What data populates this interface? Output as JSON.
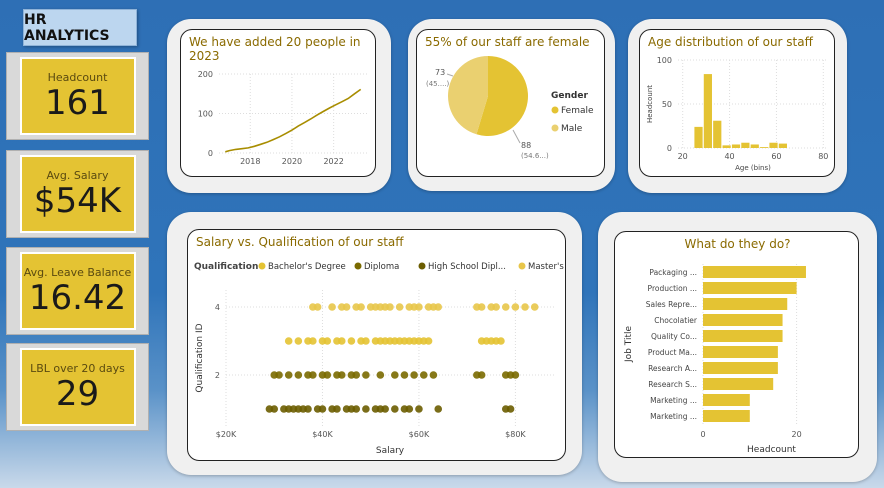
{
  "header": {
    "title": "HR ANALYTICS"
  },
  "kpis": [
    {
      "label": "Headcount",
      "value": "161"
    },
    {
      "label": "Avg. Salary",
      "value": "$54K"
    },
    {
      "label": "Avg. Leave Balance",
      "value": "16.42"
    },
    {
      "label": "LBL over 20 days",
      "value": "29"
    }
  ],
  "colors": {
    "gold": "#e4c333",
    "olive": "#7a6a00",
    "darkgold": "#a88d00",
    "title": "#8a6a00"
  },
  "chart_data": [
    {
      "type": "line",
      "title": "We have added 20 people in 2023",
      "xticks": [
        "2018",
        "2020",
        "2022"
      ],
      "yticks": [
        "0",
        "100",
        "200"
      ],
      "ylim": [
        0,
        200
      ],
      "xlim": [
        2016.5,
        2023.6
      ],
      "x": [
        2016.8,
        2017.0,
        2017.3,
        2017.6,
        2017.9,
        2018.2,
        2018.5,
        2018.8,
        2019.1,
        2019.4,
        2019.7,
        2020.0,
        2020.3,
        2020.6,
        2020.9,
        2021.2,
        2021.5,
        2021.8,
        2022.1,
        2022.4,
        2022.7,
        2023.0,
        2023.3
      ],
      "y": [
        3,
        6,
        9,
        11,
        13,
        17,
        22,
        27,
        34,
        41,
        49,
        58,
        68,
        77,
        86,
        96,
        105,
        114,
        122,
        130,
        138,
        150,
        161
      ]
    },
    {
      "type": "pie",
      "title": "55% of our staff are female",
      "legend_title": "Gender",
      "slices": [
        {
          "name": "Female",
          "value": 88,
          "label": "88",
          "pct": "(54.6...)"
        },
        {
          "name": "Male",
          "value": 73,
          "label": "73",
          "pct": "(45....)"
        }
      ]
    },
    {
      "type": "bar",
      "title": "Age distribution of our staff",
      "xlabel": "Age (bins)",
      "ylabel": "Headcount",
      "xticks": [
        "20",
        "40",
        "60",
        "80"
      ],
      "yticks": [
        "0",
        "50",
        "100"
      ],
      "xlim": [
        18,
        82
      ],
      "ylim": [
        0,
        100
      ],
      "bins": [
        {
          "x0": 25,
          "x1": 28.5,
          "value": 24
        },
        {
          "x0": 29,
          "x1": 32.5,
          "value": 84
        },
        {
          "x0": 33,
          "x1": 36.5,
          "value": 31
        },
        {
          "x0": 37,
          "x1": 40.5,
          "value": 3
        },
        {
          "x0": 41,
          "x1": 44.5,
          "value": 4
        },
        {
          "x0": 45,
          "x1": 48.5,
          "value": 6
        },
        {
          "x0": 49,
          "x1": 52.5,
          "value": 4
        },
        {
          "x0": 53,
          "x1": 56.5,
          "value": 1
        },
        {
          "x0": 57,
          "x1": 60.5,
          "value": 6
        },
        {
          "x0": 61,
          "x1": 64.5,
          "value": 5
        }
      ]
    },
    {
      "type": "scatter",
      "title": "Salary vs. Qualification of our staff",
      "legend_title": "Qualification",
      "xlabel": "Salary",
      "ylabel": "Qualification ID",
      "xticks": [
        "$20K",
        "$40K",
        "$60K",
        "$80K"
      ],
      "xtick_values": [
        20,
        40,
        60,
        80
      ],
      "yticks": [
        "2",
        "4"
      ],
      "ytick_values": [
        2,
        4
      ],
      "xlim": [
        20,
        88
      ],
      "ylim": [
        0.5,
        4.5
      ],
      "series": [
        {
          "name": "Bachelor's Degree",
          "y": 3,
          "x": [
            33,
            35,
            37,
            38,
            40,
            41,
            43,
            44,
            46,
            48,
            49,
            51,
            52,
            53,
            54,
            55,
            56,
            57,
            58,
            59,
            60,
            61,
            62,
            73,
            74,
            75,
            76,
            77
          ]
        },
        {
          "name": "Diploma",
          "y": 2,
          "x": [
            30,
            31,
            33,
            35,
            37,
            38,
            40,
            41,
            43,
            44,
            46,
            47,
            49,
            52,
            55,
            57,
            59,
            61,
            63,
            72,
            73,
            78,
            79,
            80
          ]
        },
        {
          "name": "High School Dipl...",
          "y": 1,
          "x": [
            29,
            30,
            32,
            33,
            34,
            35,
            36,
            37,
            39,
            40,
            42,
            43,
            45,
            46,
            47,
            49,
            51,
            52,
            53,
            55,
            57,
            58,
            60,
            64,
            78,
            79
          ]
        },
        {
          "name": "Master's Degr...",
          "y": 4,
          "x": [
            38,
            39,
            42,
            44,
            45,
            47,
            48,
            50,
            51,
            52,
            53,
            54,
            56,
            58,
            59,
            60,
            62,
            63,
            64,
            72,
            73,
            75,
            76,
            78,
            80,
            82,
            84
          ]
        }
      ]
    },
    {
      "type": "bar",
      "orientation": "horizontal",
      "title": "What do they do?",
      "xlabel": "Headcount",
      "ylabel": "Job Title",
      "xticks": [
        "0",
        "20"
      ],
      "xlim": [
        0,
        25
      ],
      "categories": [
        "Packaging ...",
        "Production ...",
        "Sales Repre...",
        "Chocolatier",
        "Quality Co...",
        "Product Ma...",
        "Research A...",
        "Research S...",
        "Marketing ...",
        "Marketing ..."
      ],
      "values": [
        22,
        20,
        18,
        17,
        17,
        16,
        16,
        15,
        10,
        10
      ]
    }
  ]
}
